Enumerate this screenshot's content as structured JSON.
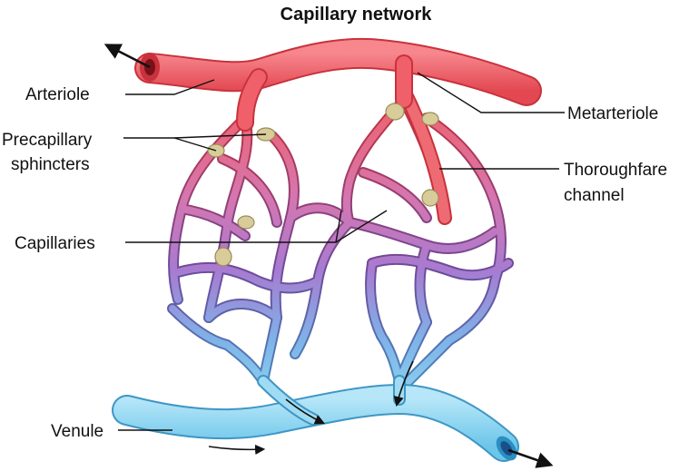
{
  "title": "Capillary network",
  "labels": {
    "arteriole": "Arteriole",
    "precapillary_line1": "Precapillary",
    "precapillary_line2": "sphincters",
    "capillaries": "Capillaries",
    "venule": "Venule",
    "metarteriole": "Metarteriole",
    "thoroughfare_line1": "Thoroughfare",
    "thoroughfare_line2": "channel"
  },
  "colors": {
    "arteriole": "#f0606a",
    "arteriole_dark": "#c8323c",
    "capillary_mid": "#a77bd0",
    "venule": "#8fd6f2",
    "venule_dark": "#2a8fc0",
    "sphincter": "#d8cc9a"
  }
}
